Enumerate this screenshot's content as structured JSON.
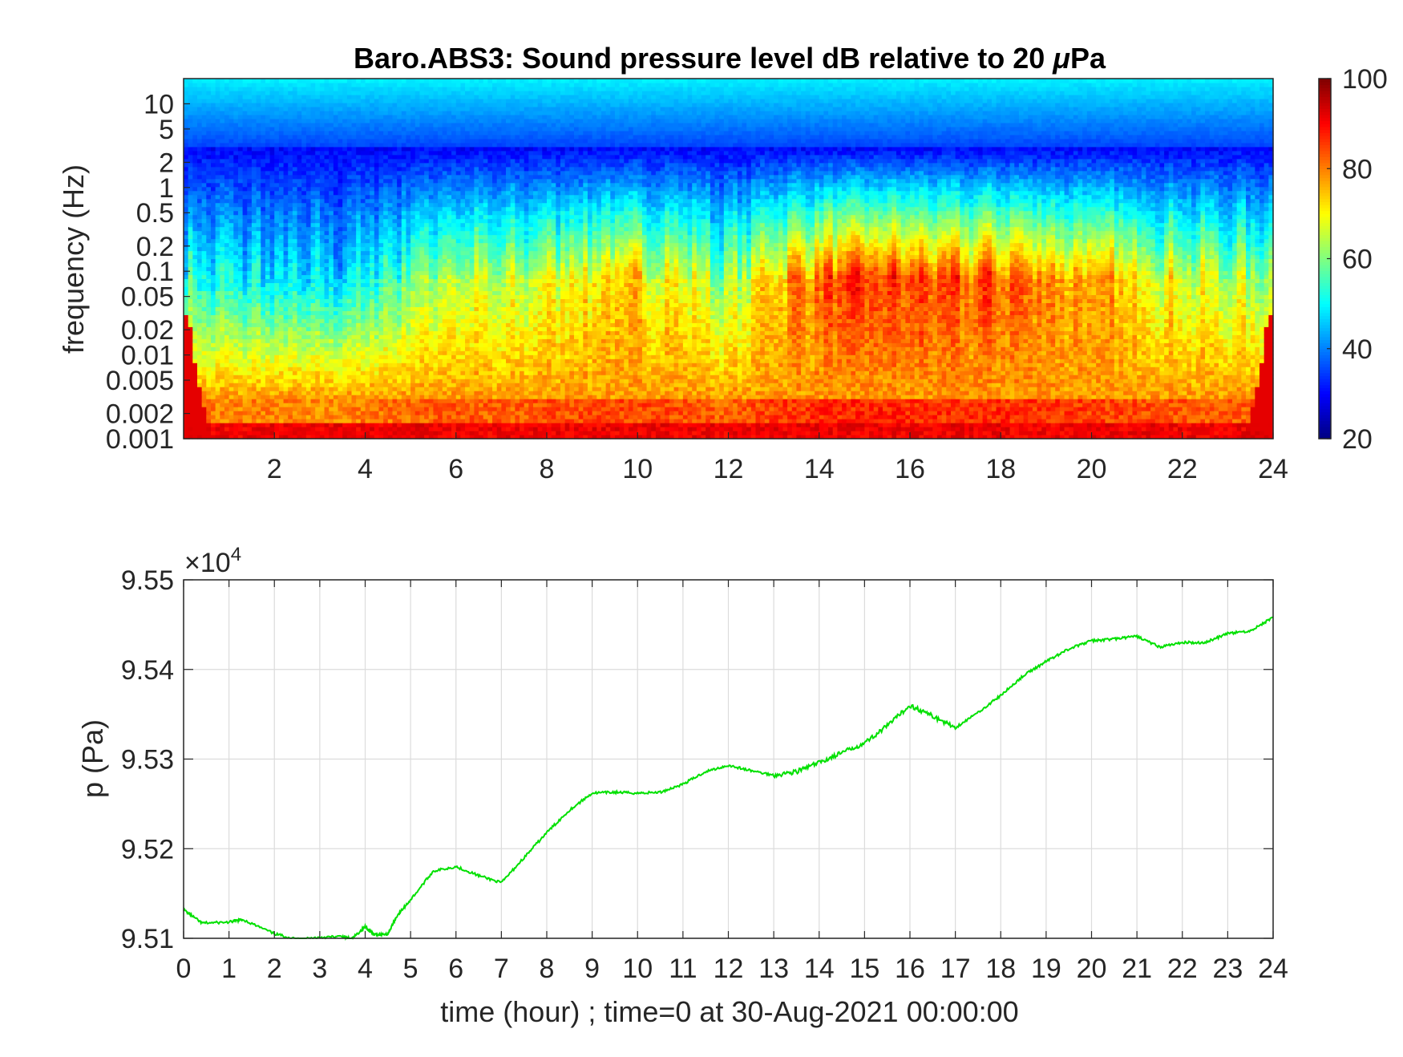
{
  "chart_data": [
    {
      "type": "heatmap",
      "title_prefix": "Baro.ABS3: Sound pressure level dB relative to 20 ",
      "title_mu": "μ",
      "title_suffix": "Pa",
      "xlabel": "",
      "ylabel": "frequency (Hz)",
      "x_range": [
        0,
        24
      ],
      "x_ticks": [
        "2",
        "4",
        "6",
        "8",
        "10",
        "12",
        "14",
        "16",
        "18",
        "20",
        "22",
        "24"
      ],
      "y_scale": "log",
      "y_range": [
        0.001,
        20
      ],
      "y_ticks": [
        "0.001",
        "0.002",
        "0.005",
        "0.01",
        "0.02",
        "0.05",
        "0.1",
        "0.2",
        "0.5",
        "1",
        "2",
        "5",
        "10"
      ],
      "colormap": "jet",
      "colorbar": {
        "range": [
          20,
          100
        ],
        "ticks": [
          "20",
          "40",
          "60",
          "80",
          "100"
        ]
      },
      "level_profile_time_hours": [
        0,
        2,
        3,
        4,
        5,
        6,
        7,
        8,
        9,
        10,
        11,
        12,
        13,
        14,
        15,
        16,
        17,
        18,
        19,
        20,
        21,
        22,
        23,
        24
      ],
      "level_profile_dB_at_0_05Hz": [
        52,
        48,
        46,
        50,
        60,
        66,
        62,
        68,
        72,
        72,
        70,
        60,
        76,
        82,
        86,
        85,
        82,
        84,
        80,
        76,
        72,
        68,
        64,
        62
      ]
    },
    {
      "type": "line",
      "xlabel": "time (hour) ; time=0 at 30-Aug-2021 00:00:00",
      "ylabel": "p (Pa)",
      "x_range": [
        0,
        24
      ],
      "x_ticks": [
        "0",
        "1",
        "2",
        "3",
        "4",
        "5",
        "6",
        "7",
        "8",
        "9",
        "10",
        "11",
        "12",
        "13",
        "14",
        "15",
        "16",
        "17",
        "18",
        "19",
        "20",
        "21",
        "22",
        "23",
        "24"
      ],
      "y_range": [
        95100,
        95500
      ],
      "y_ticks": [
        "9.51",
        "9.52",
        "9.53",
        "9.54",
        "9.55"
      ],
      "y_exponent_label": "×10",
      "y_exponent_power": "4",
      "grid": true,
      "series": [
        {
          "color": "#00e000",
          "x": [
            0,
            0.4,
            1,
            1.3,
            2,
            2.5,
            3,
            3.5,
            3.7,
            4,
            4.2,
            4.5,
            4.7,
            5,
            5.5,
            6,
            6.5,
            7,
            7.5,
            8,
            8.5,
            9,
            9.5,
            10,
            10.5,
            11,
            11.5,
            12,
            12.5,
            13,
            13.5,
            14,
            14.5,
            15,
            15.5,
            16,
            16.5,
            17,
            17.5,
            18,
            18.5,
            19,
            19.5,
            20,
            20.5,
            21,
            21.5,
            22,
            22.5,
            23,
            23.5,
            24
          ],
          "y": [
            95132,
            95117,
            95118,
            95121,
            95105,
            95099,
            95101,
            95102,
            95099,
            95113,
            95104,
            95105,
            95125,
            95143,
            95175,
            95180,
            95170,
            95162,
            95190,
            95218,
            95243,
            95262,
            95263,
            95262,
            95263,
            95272,
            95286,
            95293,
            95287,
            95282,
            95286,
            95296,
            95307,
            95318,
            95337,
            95360,
            95348,
            95335,
            95352,
            95371,
            95393,
            95409,
            95423,
            95432,
            95434,
            95437,
            95425,
            95430,
            95430,
            95440,
            95443,
            95458
          ]
        }
      ]
    }
  ]
}
